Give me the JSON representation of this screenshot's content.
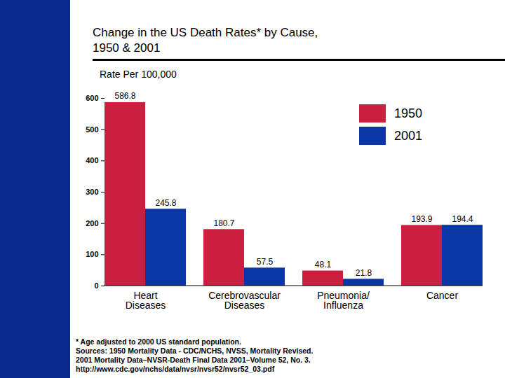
{
  "chart_data": {
    "type": "bar",
    "title": "Change in the US Death Rates* by Cause, 1950 & 2001",
    "subtitle": "Rate Per 100,000",
    "categories": [
      "Heart Diseases",
      "Cerebrovascular Diseases",
      "Pneumonia/ Influenza",
      "Cancer"
    ],
    "series": [
      {
        "name": "1950",
        "color": "#cc1f3f",
        "values": [
          586.8,
          180.7,
          48.1,
          193.9
        ]
      },
      {
        "name": "2001",
        "color": "#0a36a6",
        "values": [
          245.8,
          57.5,
          21.8,
          194.4
        ]
      }
    ],
    "ylim": [
      0,
      600
    ],
    "yticks": [
      0,
      100,
      200,
      300,
      400,
      500,
      600
    ],
    "grid": false,
    "data_labels": true,
    "legend": "top-right",
    "notes": [
      "* Age adjusted to 2000 US standard population.",
      "Sources: 1950 Mortality Data - CDC/NCHS, NVSS, Mortality Revised.",
      "2001 Mortality Data–NVSR-Death Final Data 2001–Volume 52, No. 3.",
      "http://www.cdc.gov/nchs/data/nvsr/nvsr52/nvsr52_03.pdf"
    ]
  }
}
